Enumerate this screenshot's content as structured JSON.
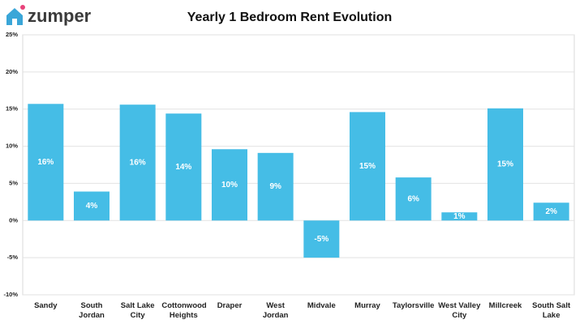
{
  "brand": "zumper",
  "chart_data": {
    "type": "bar",
    "title": "Yearly 1 Bedroom Rent Evolution",
    "categories": [
      "Sandy",
      "South Jordan",
      "Salt Lake City",
      "Cottonwood Heights",
      "Draper",
      "West Jordan",
      "Midvale",
      "Murray",
      "Taylorsville",
      "West Valley City",
      "Millcreek",
      "South Salt Lake"
    ],
    "values": [
      15.7,
      3.9,
      15.6,
      14.4,
      9.6,
      9.1,
      -5.0,
      14.6,
      5.8,
      1.1,
      15.1,
      2.4
    ],
    "value_labels": [
      "16%",
      "4%",
      "16%",
      "14%",
      "10%",
      "9%",
      "-5%",
      "15%",
      "6%",
      "1%",
      "15%",
      "2%"
    ],
    "color": "#45bde6",
    "ylim": [
      -10,
      25
    ],
    "yticks": [
      {
        "value": -10,
        "label": "-10%"
      },
      {
        "value": -5,
        "label": "-5%"
      },
      {
        "value": 0,
        "label": "0%"
      },
      {
        "value": 5,
        "label": "5%"
      },
      {
        "value": 10,
        "label": "10%"
      },
      {
        "value": 15,
        "label": "15%"
      },
      {
        "value": 20,
        "label": "20%"
      },
      {
        "value": 25,
        "label": "25%"
      }
    ],
    "grid": true
  }
}
